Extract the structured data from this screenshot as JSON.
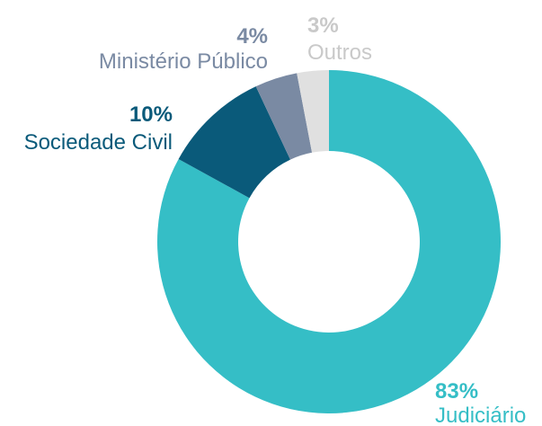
{
  "chart_data": {
    "type": "donut",
    "categories": [
      "Judiciário",
      "Sociedade Civil",
      "Ministério Público",
      "Outros"
    ],
    "values": [
      83,
      10,
      4,
      3
    ],
    "value_labels": [
      "83%",
      "10%",
      "4%",
      "3%"
    ],
    "colors": [
      "#35bec6",
      "#0a5a7a",
      "#7a8aa3",
      "#e0e0e0"
    ]
  }
}
